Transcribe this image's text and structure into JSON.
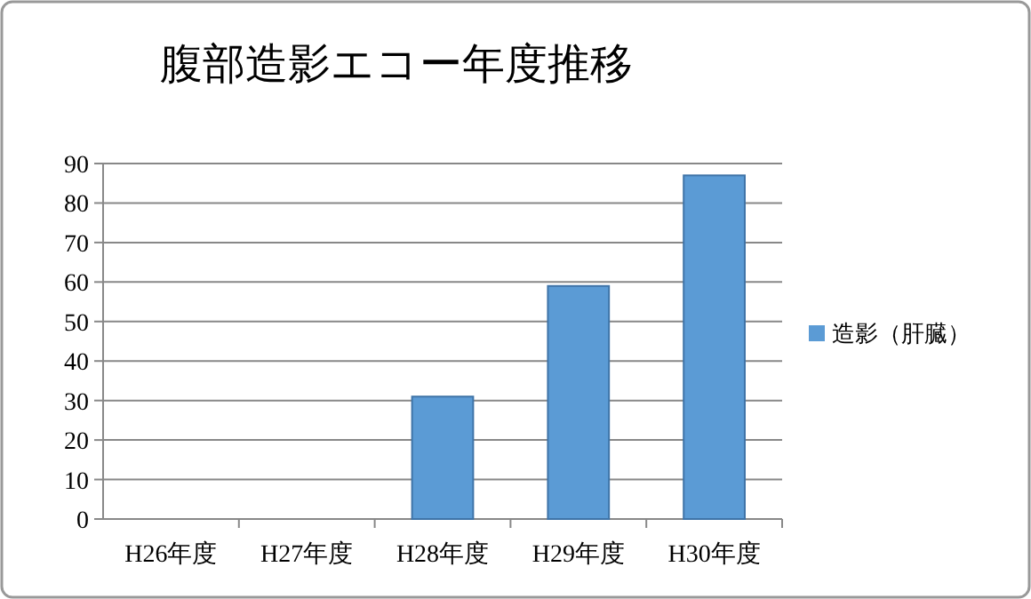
{
  "chart_data": {
    "type": "bar",
    "title": "腹部造影エコー年度推移",
    "categories": [
      "H26年度",
      "H27年度",
      "H28年度",
      "H29年度",
      "H30年度"
    ],
    "series": [
      {
        "name": "造影（肝臓）",
        "color": "#5b9bd5",
        "values": [
          0,
          0,
          31,
          59,
          87
        ]
      }
    ],
    "ylim": [
      0,
      90
    ],
    "yticks": [
      0,
      10,
      20,
      30,
      40,
      50,
      60,
      70,
      80,
      90
    ],
    "grid": "y",
    "legend": "right"
  }
}
